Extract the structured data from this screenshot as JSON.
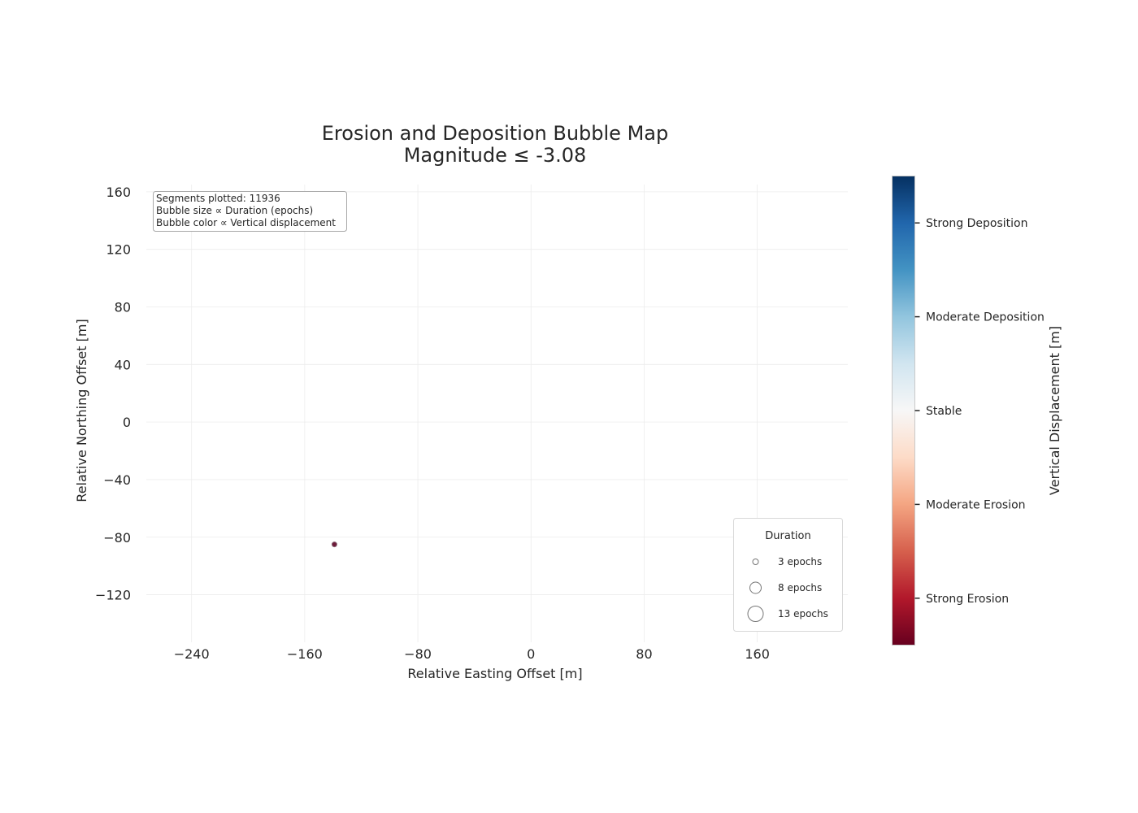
{
  "chart_data": {
    "type": "scatter",
    "title": "Erosion and Deposition Bubble Map",
    "subtitle": "Magnitude ≤ -3.08",
    "xlabel": "Relative Easting Offset [m]",
    "ylabel": "Relative Northing Offset [m]",
    "xlim": [
      -272,
      224
    ],
    "ylim": [
      -153,
      165
    ],
    "x_ticks": [
      -240,
      -160,
      -80,
      0,
      80,
      160
    ],
    "x_tick_labels": [
      "−240",
      "−160",
      "−80",
      "0",
      "80",
      "160"
    ],
    "y_ticks": [
      160,
      120,
      80,
      40,
      0,
      -40,
      -80,
      -120
    ],
    "y_tick_labels": [
      "160",
      "120",
      "80",
      "40",
      "0",
      "−40",
      "−80",
      "−120"
    ],
    "grid": true,
    "points": [
      {
        "x": -139,
        "y": -85,
        "duration_epochs": 3,
        "vertical_displacement": -3.3,
        "color": "#6e1a3a"
      }
    ],
    "annotation": [
      "Segments plotted: 11936",
      "Bubble size ∝ Duration (epochs)",
      "Bubble color ∝ Vertical displacement"
    ],
    "legend": {
      "title": "Duration",
      "placement": "lower-right",
      "entries": [
        {
          "label": "3 epochs",
          "epochs": 3
        },
        {
          "label": "8 epochs",
          "epochs": 8
        },
        {
          "label": "13 epochs",
          "epochs": 13
        }
      ]
    },
    "colorbar": {
      "label": "Vertical Displacement [m]",
      "colormap": "RdBu",
      "tick_labels": [
        "Strong Deposition",
        "Moderate Deposition",
        "Stable",
        "Moderate Erosion",
        "Strong Erosion"
      ],
      "tick_fractions": [
        0.9,
        0.7,
        0.5,
        0.3,
        0.1
      ],
      "colors": [
        "#67001f",
        "#b2182b",
        "#d6604d",
        "#f4a582",
        "#fddbc7",
        "#f7f7f7",
        "#d1e5f0",
        "#92c5de",
        "#4393c3",
        "#2166ac",
        "#053061"
      ]
    }
  }
}
